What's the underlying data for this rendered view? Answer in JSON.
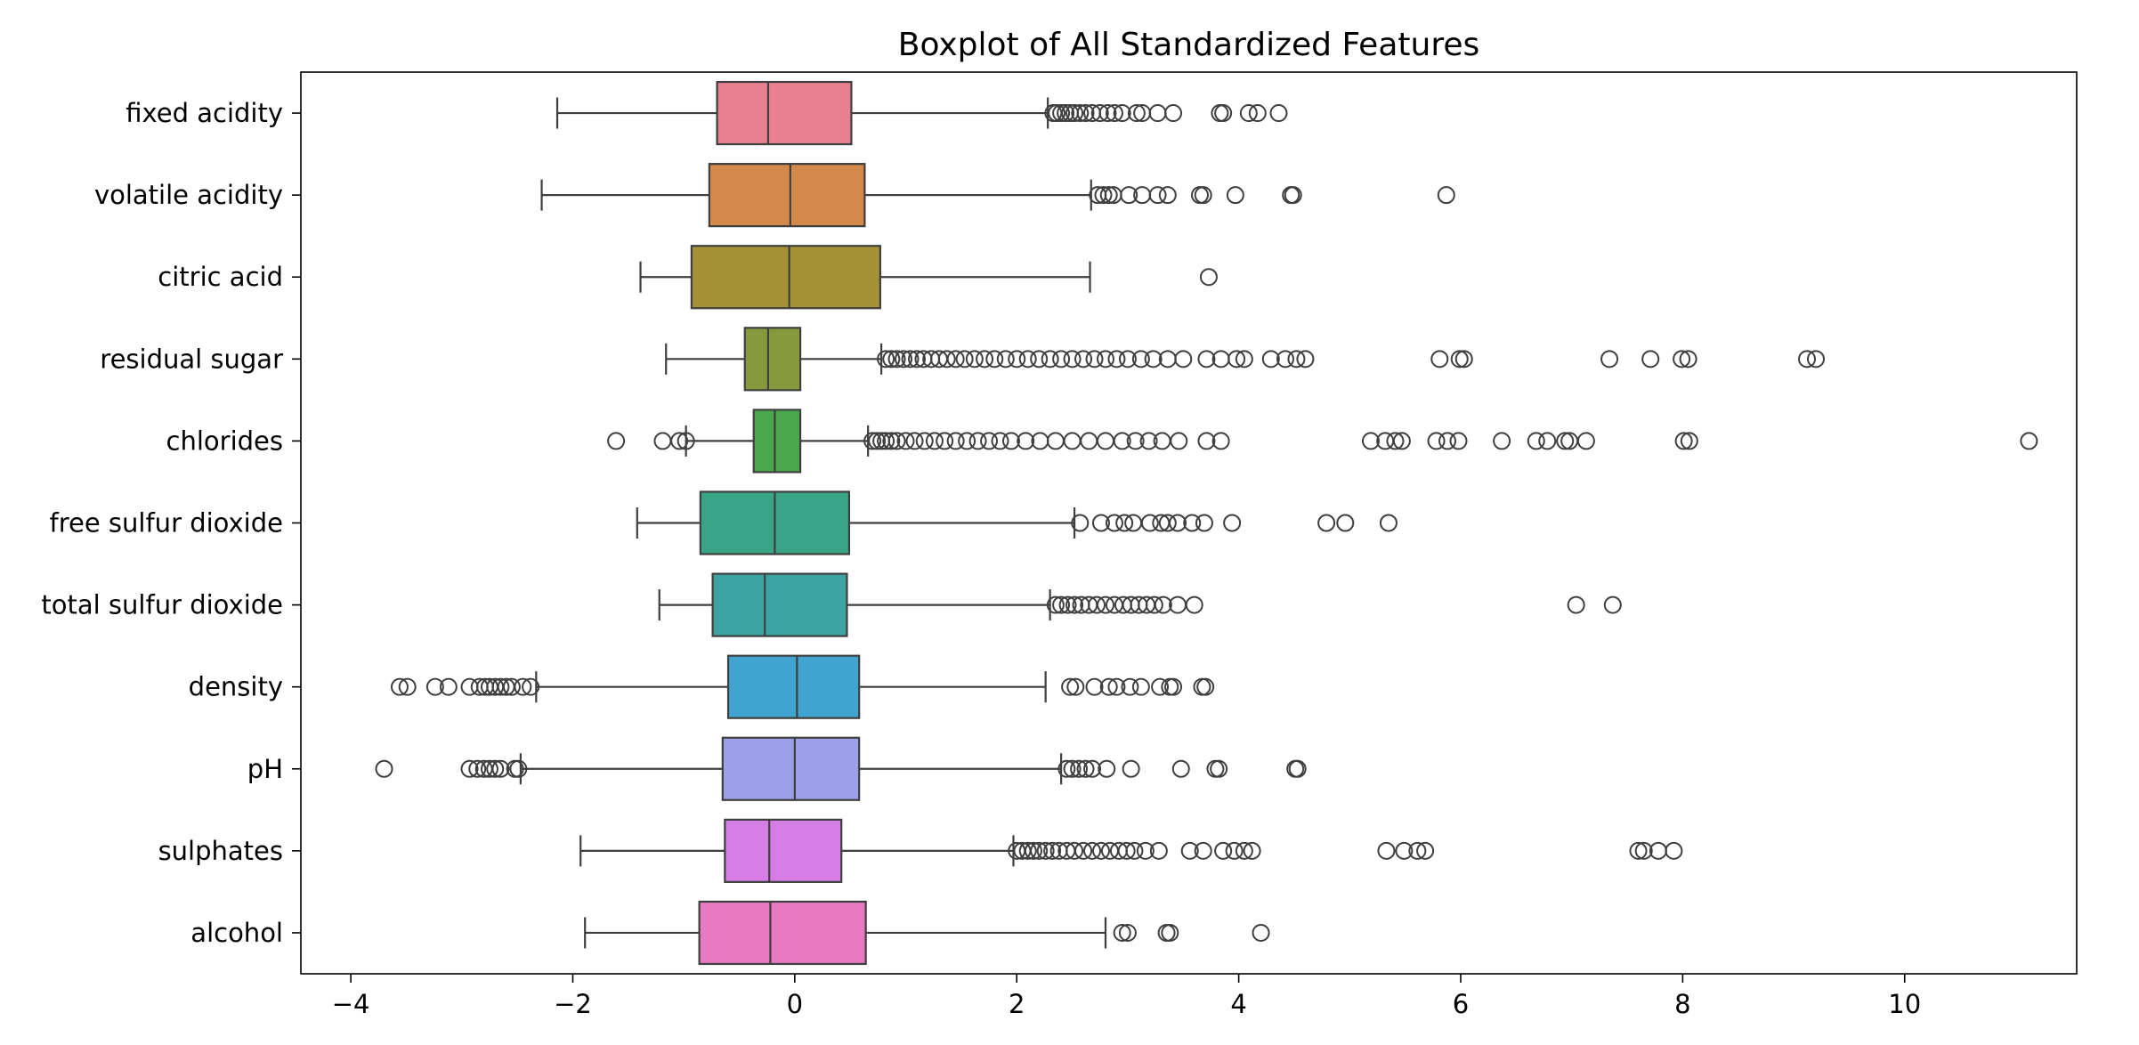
{
  "chart_data": {
    "type": "boxplot",
    "title": "Boxplot of All Standardized Features",
    "xlabel": "",
    "ylabel": "",
    "xlim": [
      -4.45,
      11.55
    ],
    "xticks": [
      -4,
      -2,
      0,
      2,
      4,
      6,
      8,
      10
    ],
    "xtick_labels": [
      "−4",
      "−2",
      "0",
      "2",
      "4",
      "6",
      "8",
      "10"
    ],
    "grid": false,
    "orientation": "horizontal",
    "categories": [
      "fixed acidity",
      "volatile acidity",
      "citric acid",
      "residual sugar",
      "chlorides",
      "free sulfur dioxide",
      "total sulfur dioxide",
      "density",
      "pH",
      "sulphates",
      "alcohol"
    ],
    "boxes": [
      {
        "name": "fixed acidity",
        "color": "#e8808f",
        "whisker_low": -2.14,
        "q1": -0.7,
        "median": -0.24,
        "q3": 0.51,
        "whisker_high": 2.28,
        "outliers": [
          2.33,
          2.36,
          2.4,
          2.44,
          2.48,
          2.52,
          2.57,
          2.62,
          2.68,
          2.75,
          2.82,
          2.88,
          2.95,
          3.08,
          3.13,
          3.27,
          3.41,
          3.83,
          3.86,
          4.09,
          4.17,
          4.36
        ]
      },
      {
        "name": "volatile acidity",
        "color": "#d4884a",
        "whisker_low": -2.28,
        "q1": -0.77,
        "median": -0.04,
        "q3": 0.63,
        "whisker_high": 2.67,
        "outliers": [
          2.73,
          2.78,
          2.83,
          2.87,
          3.01,
          3.13,
          3.27,
          3.36,
          3.65,
          3.68,
          3.97,
          4.47,
          4.49,
          5.87
        ]
      },
      {
        "name": "citric acid",
        "color": "#a59137",
        "whisker_low": -1.39,
        "q1": -0.93,
        "median": -0.05,
        "q3": 0.77,
        "whisker_high": 2.66,
        "outliers": [
          3.73
        ]
      },
      {
        "name": "residual sugar",
        "color": "#879a3b",
        "whisker_low": -1.16,
        "q1": -0.45,
        "median": -0.24,
        "q3": 0.05,
        "whisker_high": 0.78,
        "outliers": [
          0.82,
          0.87,
          0.92,
          0.98,
          1.04,
          1.1,
          1.16,
          1.23,
          1.3,
          1.37,
          1.45,
          1.53,
          1.62,
          1.71,
          1.8,
          1.9,
          2.0,
          2.1,
          2.2,
          2.3,
          2.4,
          2.5,
          2.6,
          2.7,
          2.8,
          2.9,
          3.0,
          3.12,
          3.23,
          3.36,
          3.5,
          3.71,
          3.84,
          3.98,
          4.05,
          4.29,
          4.42,
          4.52,
          4.6,
          5.81,
          5.99,
          6.03,
          7.34,
          7.71,
          7.99,
          8.05,
          9.12,
          9.2
        ]
      },
      {
        "name": "chlorides",
        "color": "#49a74c",
        "whisker_low": -0.98,
        "q1": -0.37,
        "median": -0.18,
        "q3": 0.05,
        "whisker_high": 0.66,
        "outliers": [
          -1.61,
          -1.19,
          -1.04,
          -0.98,
          0.7,
          0.74,
          0.78,
          0.82,
          0.87,
          0.92,
          1.0,
          1.08,
          1.17,
          1.26,
          1.35,
          1.45,
          1.55,
          1.65,
          1.75,
          1.85,
          1.95,
          2.08,
          2.21,
          2.35,
          2.5,
          2.65,
          2.8,
          2.95,
          3.07,
          3.19,
          3.31,
          3.46,
          3.71,
          3.84,
          5.19,
          5.32,
          5.41,
          5.47,
          5.78,
          5.88,
          5.98,
          6.37,
          6.68,
          6.78,
          6.94,
          6.98,
          7.13,
          8.01,
          8.06,
          11.12
        ]
      },
      {
        "name": "free sulfur dioxide",
        "color": "#3aa487",
        "whisker_low": -1.42,
        "q1": -0.85,
        "median": -0.18,
        "q3": 0.49,
        "whisker_high": 2.52,
        "outliers": [
          2.57,
          2.76,
          2.88,
          2.97,
          3.05,
          3.2,
          3.3,
          3.36,
          3.45,
          3.58,
          3.69,
          3.94,
          4.79,
          4.96,
          5.35
        ]
      },
      {
        "name": "total sulfur dioxide",
        "color": "#3ca4a2",
        "whisker_low": -1.22,
        "q1": -0.74,
        "median": -0.27,
        "q3": 0.47,
        "whisker_high": 2.3,
        "outliers": [
          2.35,
          2.4,
          2.46,
          2.52,
          2.58,
          2.65,
          2.72,
          2.8,
          2.88,
          2.96,
          3.03,
          3.1,
          3.17,
          3.24,
          3.32,
          3.45,
          3.6,
          7.04,
          7.37
        ]
      },
      {
        "name": "density",
        "color": "#3fa4cf",
        "whisker_low": -2.33,
        "q1": -0.6,
        "median": 0.02,
        "q3": 0.58,
        "whisker_high": 2.26,
        "outliers": [
          -3.56,
          -3.49,
          -3.24,
          -3.12,
          -2.93,
          -2.84,
          -2.79,
          -2.75,
          -2.7,
          -2.65,
          -2.6,
          -2.55,
          -2.45,
          -2.38,
          2.48,
          2.53,
          2.7,
          2.83,
          2.9,
          3.02,
          3.12,
          3.29,
          3.38,
          3.41,
          3.67,
          3.7
        ]
      },
      {
        "name": "pH",
        "color": "#9ba0e8",
        "whisker_low": -2.47,
        "q1": -0.65,
        "median": 0.0,
        "q3": 0.58,
        "whisker_high": 2.4,
        "outliers": [
          -3.7,
          -2.93,
          -2.86,
          -2.8,
          -2.75,
          -2.7,
          -2.65,
          -2.52,
          -2.49,
          2.45,
          2.5,
          2.56,
          2.62,
          2.68,
          2.81,
          3.03,
          3.48,
          3.79,
          3.82,
          4.51,
          4.53
        ]
      },
      {
        "name": "sulphates",
        "color": "#d67de6",
        "whisker_low": -1.93,
        "q1": -0.63,
        "median": -0.23,
        "q3": 0.42,
        "whisker_high": 1.97,
        "outliers": [
          2.0,
          2.05,
          2.1,
          2.15,
          2.2,
          2.26,
          2.32,
          2.38,
          2.45,
          2.52,
          2.6,
          2.68,
          2.76,
          2.84,
          2.92,
          2.99,
          3.06,
          3.16,
          3.28,
          3.56,
          3.68,
          3.86,
          3.96,
          4.05,
          4.12,
          5.33,
          5.49,
          5.61,
          5.68,
          7.6,
          7.65,
          7.78,
          7.92
        ]
      },
      {
        "name": "alcohol",
        "color": "#e77ac1",
        "whisker_low": -1.89,
        "q1": -0.86,
        "median": -0.22,
        "q3": 0.64,
        "whisker_high": 2.8,
        "outliers": [
          2.95,
          3.0,
          3.35,
          3.38,
          4.2
        ]
      }
    ]
  }
}
